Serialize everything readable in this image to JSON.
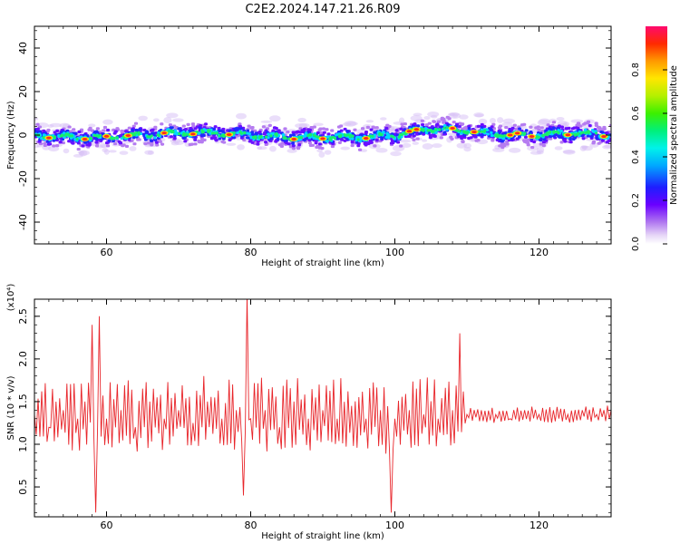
{
  "title": "C2E2.2024.147.21.26.R09",
  "chart_data": [
    {
      "type": "heatmap",
      "xlabel": "Height of straight line (km)",
      "ylabel": "Frequency (Hz)",
      "xlim": [
        50,
        130
      ],
      "ylim": [
        -50,
        50
      ],
      "xticks": [
        60,
        80,
        100,
        120
      ],
      "yticks": [
        -40,
        -20,
        0,
        20,
        40
      ],
      "colorbar": {
        "label": "Normalized spectral amplitude",
        "range": [
          0.0,
          1.0
        ],
        "ticks": [
          0.0,
          0.2,
          0.4,
          0.6,
          0.8
        ],
        "tick_labels": [
          "0.0",
          "0.2",
          "0.4",
          "0.6",
          "0.8"
        ],
        "colormap": "rainbow (white-purple-blue-cyan-green-yellow-orange-red-magenta)"
      },
      "ridge": {
        "x": [
          50,
          55,
          60,
          65,
          70,
          75,
          80,
          85,
          90,
          95,
          100,
          105,
          110,
          115,
          120,
          125,
          130
        ],
        "y": [
          0,
          -1,
          -1,
          0,
          1,
          1,
          0,
          -1,
          -1,
          -1,
          0,
          3,
          2,
          0,
          0,
          1,
          0
        ]
      },
      "ridge_peak_x": [
        52,
        57,
        60,
        63,
        68,
        72,
        77,
        86,
        90,
        96,
        102,
        103,
        108,
        111,
        116,
        117,
        119,
        124,
        129
      ]
    },
    {
      "type": "line",
      "xlabel": "Height of straight line (km)",
      "ylabel": "SNR (10 * v/v)",
      "y_multiplier": "(x10⁴)",
      "xlim": [
        50,
        130
      ],
      "ylim": [
        0.15,
        2.7
      ],
      "xticks": [
        60,
        80,
        100,
        120
      ],
      "yticks": [
        0.5,
        1.0,
        1.5,
        2.0,
        2.5
      ],
      "yticklabels": [
        "0.5",
        "1.0",
        "1.5",
        "2.0",
        "2.5"
      ],
      "series": [
        {
          "color": "#e8252a",
          "x": [
            50,
            52,
            54,
            56,
            57,
            58,
            58.5,
            59,
            60,
            62,
            64,
            66,
            68,
            70,
            72,
            74,
            76,
            78,
            79,
            79.5,
            80,
            82,
            84,
            86,
            88,
            90,
            92,
            94,
            96,
            98,
            99.5,
            100,
            102,
            104,
            106,
            108,
            109,
            110,
            112,
            114,
            116,
            118,
            120,
            122,
            124,
            126,
            128,
            130
          ],
          "y": [
            1.35,
            1.2,
            1.4,
            1.3,
            1.5,
            2.4,
            0.2,
            2.5,
            1.3,
            1.4,
            1.2,
            1.5,
            1.3,
            1.4,
            1.25,
            1.5,
            1.3,
            1.4,
            0.4,
            2.75,
            1.3,
            1.4,
            1.2,
            1.5,
            1.3,
            1.4,
            1.3,
            1.45,
            1.3,
            1.4,
            0.2,
            1.3,
            1.4,
            1.35,
            1.3,
            1.4,
            2.3,
            1.35,
            1.4,
            1.35,
            1.3,
            1.4,
            1.35,
            1.4,
            1.35,
            1.4,
            1.35,
            1.4
          ]
        }
      ]
    }
  ]
}
